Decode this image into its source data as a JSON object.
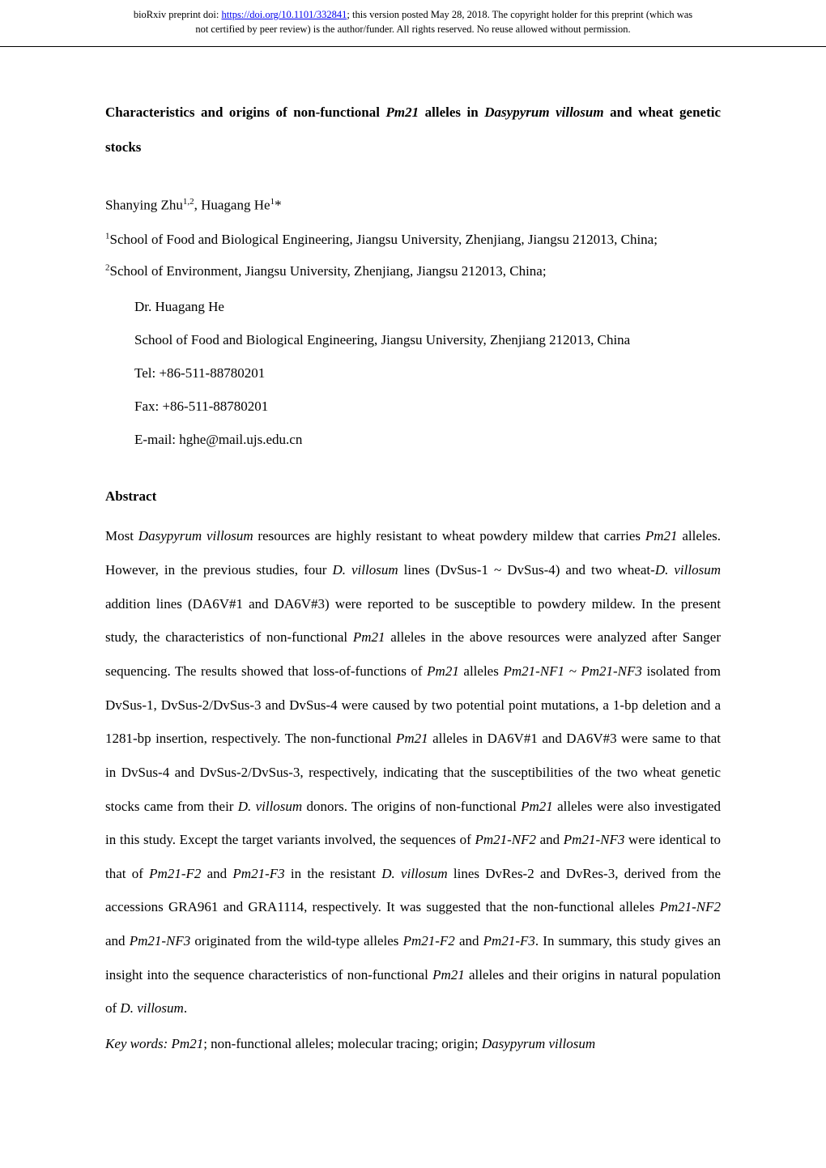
{
  "header": {
    "line1_prefix": "bioRxiv preprint doi: ",
    "doi_url": "https://doi.org/10.1101/332841",
    "line1_suffix": "; this version posted May 28, 2018. The copyright holder for this preprint (which was",
    "line2": "not certified by peer review) is the author/funder. All rights reserved. No reuse allowed without permission."
  },
  "title": {
    "part1": "Characteristics and origins of non-functional ",
    "part2_italic": "Pm21",
    "part3": " alleles in ",
    "part4_italic": "Dasypyrum villosum",
    "part5": " and wheat genetic stocks"
  },
  "authors": {
    "name1": "Shanying Zhu",
    "sup1": "1,2",
    "name2": ", Huagang He",
    "sup2": "1",
    "asterisk": "*"
  },
  "affiliations": {
    "aff1_sup": "1",
    "aff1_text": "School of Food and Biological Engineering, Jiangsu University, Zhenjiang, Jiangsu 212013, China;",
    "aff2_sup": "2",
    "aff2_text": "School of Environment, Jiangsu University, Zhenjiang, Jiangsu 212013, China;"
  },
  "contact": {
    "name": "Dr. Huagang He",
    "address": "School of Food and Biological Engineering, Jiangsu University, Zhenjiang 212013, China",
    "tel": "Tel: +86-511-88780201",
    "fax": "Fax: +86-511-88780201",
    "email": "E-mail: hghe@mail.ujs.edu.cn"
  },
  "abstract": {
    "heading": "Abstract",
    "p1": "Most ",
    "p2_i": "Dasypyrum villosum",
    "p3": " resources are highly resistant to wheat powdery mildew that carries ",
    "p4_i": "Pm21",
    "p5": " alleles. However, in the previous studies, four ",
    "p6_i": "D. villosum",
    "p7": " lines (DvSus-1 ~ DvSus-4) and two wheat-",
    "p8_i": "D. villosum",
    "p9": " addition lines (DA6V#1 and DA6V#3) were reported to be susceptible to powdery mildew. In the present study, the characteristics of non-functional ",
    "p10_i": "Pm21",
    "p11": " alleles in the above resources were analyzed after Sanger sequencing. The results showed that loss-of-functions of ",
    "p12_i": "Pm21",
    "p13": " alleles ",
    "p14_i": "Pm21-NF1 ~ Pm21-NF3",
    "p15": " isolated from DvSus-1, DvSus-2/DvSus-3 and DvSus-4 were caused by two potential point mutations, a 1-bp deletion and a 1281-bp insertion, respectively. The non-functional ",
    "p16_i": "Pm21",
    "p17": " alleles in DA6V#1 and DA6V#3 were same to that in DvSus-4 and DvSus-2/DvSus-3, respectively, indicating that the susceptibilities of the two wheat genetic stocks came from their ",
    "p18_i": "D. villosum",
    "p19": " donors. The origins of non-functional ",
    "p20_i": "Pm21",
    "p21": " alleles were also investigated in this study. Except the target variants involved, the sequences of ",
    "p22_i": "Pm21-NF2",
    "p23": " and ",
    "p24_i": "Pm21-NF3",
    "p25": " were identical to that of ",
    "p26_i": "Pm21-F2",
    "p27": " and ",
    "p28_i": "Pm21-F3",
    "p29": " in the resistant ",
    "p30_i": "D. villosum",
    "p31": " lines DvRes-2 and DvRes-3, derived from the accessions GRA961 and GRA1114, respectively. It was suggested that the non-functional alleles ",
    "p32_i": "Pm21-NF2",
    "p33": " and ",
    "p34_i": "Pm21-NF3",
    "p35": " originated from the wild-type alleles ",
    "p36_i": "Pm21-F2",
    "p37": " and ",
    "p38_i": "Pm21-F3",
    "p39": ". In summary, this study gives an insight into the sequence characteristics of non-functional ",
    "p40_i": "Pm21",
    "p41": " alleles and their origins in natural population of ",
    "p42_i": "D. villosum",
    "p43": "."
  },
  "keywords": {
    "k1_i": "Key words: Pm21",
    "k2": "; non-functional alleles; molecular tracing; origin; ",
    "k3_i": "Dasypyrum villosum"
  }
}
